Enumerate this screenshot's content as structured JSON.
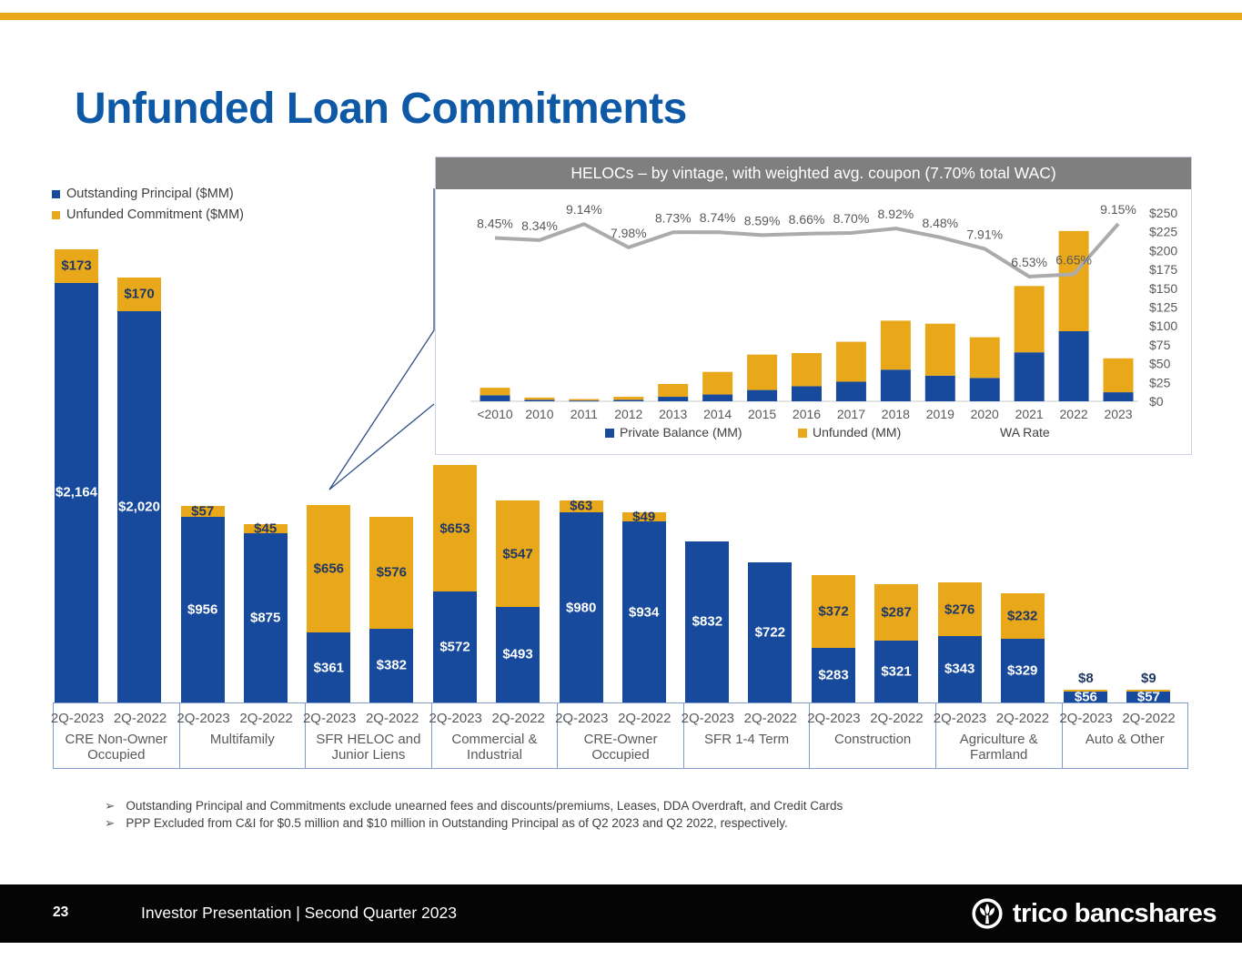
{
  "slide": {
    "title": "Unfunded Loan Commitments",
    "footnote_bullet": "➢",
    "footnotes": [
      "Outstanding Principal and Commitments exclude unearned fees and discounts/premiums, Leases, DDA Overdraft, and Credit Cards",
      "PPP Excluded from C&I for $0.5 million and $10 million in Outstanding Principal as of Q2 2023 and Q2 2022, respectively."
    ]
  },
  "legend": {
    "items": [
      {
        "label": "Outstanding Principal ($MM)",
        "color": "#174a9c"
      },
      {
        "label": "Unfunded Commitment ($MM)",
        "color": "#e9a71a"
      }
    ]
  },
  "footer": {
    "page_number": "23",
    "text": "Investor Presentation | Second Quarter 2023",
    "logo_text": "trico bancshares",
    "logo_icon": "trico-tree-icon"
  },
  "colors": {
    "principal_blue": "#174a9c",
    "unfunded_gold": "#e9a71a",
    "title_blue": "#0e59a5",
    "label_navy": "#1f3864",
    "text_gray": "#595959",
    "inset_header_gray": "#7f7f7f",
    "wa_line_gray": "#ababab",
    "top_bar_gold": "#e9a71a",
    "box_border_blue": "#7f9dc9"
  },
  "chart_data": [
    {
      "type": "bar",
      "stacked": true,
      "title": "Unfunded Loan Commitments by loan category ($MM)",
      "bar_periods": [
        "2Q-2023",
        "2Q-2022"
      ],
      "series_names": [
        "Outstanding Principal ($MM)",
        "Unfunded Commitment ($MM)"
      ],
      "ylim": [
        0,
        2337
      ],
      "groups": [
        {
          "label": "CRE Non-Owner Occupied",
          "bars": [
            {
              "period": "2Q-2023",
              "principal": 2164,
              "unfunded": 173
            },
            {
              "period": "2Q-2022",
              "principal": 2020,
              "unfunded": 170
            }
          ]
        },
        {
          "label": "Multifamily",
          "bars": [
            {
              "period": "2Q-2023",
              "principal": 956,
              "unfunded": 57
            },
            {
              "period": "2Q-2022",
              "principal": 875,
              "unfunded": 45
            }
          ]
        },
        {
          "label": "SFR HELOC and Junior Liens",
          "bars": [
            {
              "period": "2Q-2023",
              "principal": 361,
              "unfunded": 656
            },
            {
              "period": "2Q-2022",
              "principal": 382,
              "unfunded": 576
            }
          ]
        },
        {
          "label": "Commercial & Industrial",
          "bars": [
            {
              "period": "2Q-2023",
              "principal": 572,
              "unfunded": 653
            },
            {
              "period": "2Q-2022",
              "principal": 493,
              "unfunded": 547
            }
          ]
        },
        {
          "label": "CRE-Owner Occupied",
          "bars": [
            {
              "period": "2Q-2023",
              "principal": 980,
              "unfunded": 63
            },
            {
              "period": "2Q-2022",
              "principal": 934,
              "unfunded": 49
            }
          ]
        },
        {
          "label": "SFR 1-4 Term",
          "bars": [
            {
              "period": "2Q-2023",
              "principal": 832,
              "unfunded": 0
            },
            {
              "period": "2Q-2022",
              "principal": 722,
              "unfunded": 0
            }
          ]
        },
        {
          "label": "Construction",
          "bars": [
            {
              "period": "2Q-2023",
              "principal": 283,
              "unfunded": 372
            },
            {
              "period": "2Q-2022",
              "principal": 321,
              "unfunded": 287
            }
          ]
        },
        {
          "label": "Agriculture & Farmland",
          "bars": [
            {
              "period": "2Q-2023",
              "principal": 343,
              "unfunded": 276
            },
            {
              "period": "2Q-2022",
              "principal": 329,
              "unfunded": 232
            }
          ]
        },
        {
          "label": "Auto & Other",
          "bars": [
            {
              "period": "2Q-2023",
              "principal": 56,
              "unfunded": 8
            },
            {
              "period": "2Q-2022",
              "principal": 57,
              "unfunded": 9
            }
          ]
        }
      ]
    },
    {
      "type": "bar+line",
      "title": "HELOCs – by vintage, with weighted avg. coupon (7.70% total WAC)",
      "categories": [
        "<2010",
        "2010",
        "2011",
        "2012",
        "2013",
        "2014",
        "2015",
        "2016",
        "2017",
        "2018",
        "2019",
        "2020",
        "2021",
        "2022",
        "2023"
      ],
      "series": [
        {
          "name": "Private Balance (MM)",
          "type": "bar",
          "values": [
            8,
            2,
            1,
            2,
            6,
            9,
            15,
            20,
            26,
            42,
            34,
            31,
            65,
            93,
            12
          ]
        },
        {
          "name": "Unfunded (MM)",
          "type": "bar",
          "values": [
            10,
            3,
            2,
            4,
            17,
            30,
            47,
            44,
            53,
            65,
            69,
            54,
            88,
            133,
            45
          ]
        },
        {
          "name": "WA Rate",
          "type": "line",
          "values": [
            8.45,
            8.34,
            9.14,
            7.98,
            8.73,
            8.74,
            8.59,
            8.66,
            8.7,
            8.92,
            8.48,
            7.91,
            6.53,
            6.65,
            9.15
          ]
        }
      ],
      "rate_labels": [
        "8.45%",
        "8.34%",
        "9.14%",
        "7.98%",
        "8.73%",
        "8.74%",
        "8.59%",
        "8.66%",
        "8.70%",
        "8.92%",
        "8.48%",
        "7.91%",
        "6.53%",
        "6.65%",
        "9.15%"
      ],
      "y_axis_ticks": [
        "$250",
        "$225",
        "$200",
        "$175",
        "$150",
        "$125",
        "$100",
        "$75",
        "$50",
        "$25",
        "$0"
      ],
      "ylim": [
        0,
        250
      ],
      "legend": [
        "Private Balance (MM)",
        "Unfunded (MM)",
        "WA Rate"
      ],
      "legend_position": "bottom"
    }
  ]
}
